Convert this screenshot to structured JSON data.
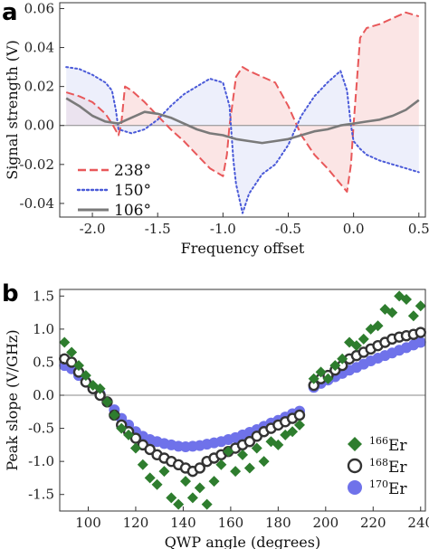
{
  "panels": {
    "a": {
      "letter": "a"
    },
    "b": {
      "letter": "b"
    }
  },
  "chart_data": [
    {
      "type": "line",
      "panel": "a",
      "xlabel": "Frequency offset",
      "ylabel": "Signal strength (V)",
      "xlim": [
        -2.25,
        0.55
      ],
      "ylim": [
        -0.047,
        0.063
      ],
      "xticks": [
        -2.0,
        -1.5,
        -1.0,
        -0.5,
        0.0,
        0.5
      ],
      "xtick_labels": [
        "-2.0",
        "-1.5",
        "-1.0",
        "-0.5",
        "0.0",
        "0.5"
      ],
      "yticks": [
        -0.04,
        -0.02,
        0.0,
        0.02,
        0.04,
        0.06
      ],
      "ytick_labels": [
        "-0.04",
        "-0.02",
        "0.00",
        "0.02",
        "0.04",
        "0.06"
      ],
      "zero_line": true,
      "shaded_to_zero": true,
      "legend_position": "bottom-left",
      "series": [
        {
          "name": "238°",
          "color": "#e8585a",
          "fill": "#f7d0cf",
          "style": "dashed",
          "x": [
            -2.2,
            -2.1,
            -2.0,
            -1.9,
            -1.85,
            -1.8,
            -1.78,
            -1.75,
            -1.7,
            -1.6,
            -1.5,
            -1.4,
            -1.3,
            -1.2,
            -1.1,
            -1.0,
            -0.97,
            -0.95,
            -0.9,
            -0.85,
            -0.8,
            -0.7,
            -0.6,
            -0.5,
            -0.4,
            -0.3,
            -0.2,
            -0.1,
            -0.05,
            -0.02,
            0.0,
            0.05,
            0.1,
            0.2,
            0.3,
            0.4,
            0.5
          ],
          "y": [
            0.017,
            0.015,
            0.012,
            0.006,
            0.001,
            -0.005,
            0.0,
            0.02,
            0.018,
            0.012,
            0.005,
            -0.002,
            -0.008,
            -0.015,
            -0.022,
            -0.026,
            -0.015,
            0.0,
            0.025,
            0.03,
            0.028,
            0.025,
            0.022,
            0.01,
            -0.005,
            -0.015,
            -0.022,
            -0.03,
            -0.034,
            -0.02,
            0.0,
            0.045,
            0.05,
            0.052,
            0.055,
            0.058,
            0.056
          ]
        },
        {
          "name": "150°",
          "color": "#4a5ad8",
          "fill": "#dfe1f7",
          "style": "dotted",
          "x": [
            -2.2,
            -2.1,
            -2.0,
            -1.9,
            -1.85,
            -1.82,
            -1.8,
            -1.7,
            -1.6,
            -1.5,
            -1.4,
            -1.3,
            -1.2,
            -1.1,
            -1.0,
            -0.95,
            -0.92,
            -0.9,
            -0.85,
            -0.8,
            -0.7,
            -0.6,
            -0.5,
            -0.4,
            -0.3,
            -0.2,
            -0.1,
            -0.05,
            -0.02,
            0.0,
            0.05,
            0.1,
            0.2,
            0.3,
            0.4,
            0.5
          ],
          "y": [
            0.03,
            0.029,
            0.026,
            0.022,
            0.018,
            0.008,
            -0.002,
            -0.004,
            -0.002,
            0.003,
            0.01,
            0.016,
            0.02,
            0.024,
            0.022,
            0.01,
            -0.018,
            -0.03,
            -0.045,
            -0.035,
            -0.025,
            -0.02,
            -0.01,
            0.005,
            0.015,
            0.022,
            0.028,
            0.018,
            0.0,
            -0.008,
            -0.012,
            -0.015,
            -0.018,
            -0.02,
            -0.022,
            -0.024
          ]
        },
        {
          "name": "106°",
          "color": "#7a7a7a",
          "style": "solid",
          "x": [
            -2.2,
            -2.1,
            -2.0,
            -1.9,
            -1.8,
            -1.7,
            -1.6,
            -1.5,
            -1.4,
            -1.3,
            -1.2,
            -1.1,
            -1.0,
            -0.9,
            -0.8,
            -0.7,
            -0.6,
            -0.5,
            -0.4,
            -0.3,
            -0.2,
            -0.1,
            0.0,
            0.1,
            0.2,
            0.3,
            0.4,
            0.5
          ],
          "y": [
            0.014,
            0.01,
            0.005,
            0.002,
            0.001,
            0.004,
            0.007,
            0.006,
            0.004,
            0.001,
            -0.002,
            -0.004,
            -0.005,
            -0.007,
            -0.008,
            -0.009,
            -0.008,
            -0.007,
            -0.005,
            -0.003,
            -0.002,
            0.0,
            0.001,
            0.002,
            0.003,
            0.005,
            0.008,
            0.013
          ]
        }
      ]
    },
    {
      "type": "scatter",
      "panel": "b",
      "xlabel": "QWP angle (degrees)",
      "ylabel": "Peak slope (V/GHz)",
      "xlim": [
        88,
        242
      ],
      "ylim": [
        -1.75,
        1.6
      ],
      "xticks": [
        100,
        120,
        140,
        160,
        180,
        200,
        220,
        240
      ],
      "xtick_labels": [
        "100",
        "120",
        "140",
        "160",
        "180",
        "200",
        "220",
        "240"
      ],
      "yticks": [
        -1.5,
        -1.0,
        -0.5,
        0.0,
        0.5,
        1.0,
        1.5
      ],
      "ytick_labels": [
        "-1.5",
        "-1.0",
        "-0.5",
        "0.0",
        "0.5",
        "1.0",
        "1.5"
      ],
      "zero_line": true,
      "legend_position": "bottom-right",
      "series": [
        {
          "name": "Er",
          "mass_number": "166",
          "marker": "diamond",
          "color": "#2e7d2e",
          "x": [
            90,
            93,
            96,
            99,
            102,
            105,
            108,
            111,
            114,
            117,
            120,
            123,
            126,
            129,
            132,
            135,
            138,
            141,
            144,
            147,
            150,
            153,
            156,
            159,
            162,
            165,
            168,
            171,
            174,
            177,
            180,
            183,
            186,
            189,
            195,
            198,
            201,
            204,
            207,
            210,
            213,
            216,
            219,
            222,
            225,
            228,
            231,
            234,
            237,
            240
          ],
          "y": [
            0.8,
            0.65,
            0.45,
            0.3,
            0.15,
            0.1,
            -0.1,
            -0.3,
            -0.5,
            -0.6,
            -0.8,
            -1.05,
            -1.25,
            -1.35,
            -1.15,
            -1.55,
            -1.65,
            -1.3,
            -1.55,
            -1.4,
            -1.65,
            -1.3,
            -1.05,
            -0.85,
            -1.15,
            -0.9,
            -1.1,
            -0.8,
            -1.0,
            -0.7,
            -0.75,
            -0.6,
            -0.55,
            -0.45,
            0.25,
            0.35,
            0.25,
            0.45,
            0.55,
            0.8,
            0.75,
            0.85,
            1.0,
            1.05,
            1.3,
            1.25,
            1.5,
            1.45,
            1.2,
            1.35
          ]
        },
        {
          "name": "Er",
          "mass_number": "168",
          "marker": "open-circle",
          "color": "#333333",
          "x": [
            90,
            93,
            96,
            99,
            102,
            105,
            108,
            111,
            114,
            117,
            120,
            123,
            126,
            129,
            132,
            135,
            138,
            141,
            144,
            147,
            150,
            153,
            156,
            159,
            162,
            165,
            168,
            171,
            174,
            177,
            180,
            183,
            186,
            189,
            195,
            198,
            201,
            204,
            207,
            210,
            213,
            216,
            219,
            222,
            225,
            228,
            231,
            234,
            237,
            240
          ],
          "y": [
            0.55,
            0.5,
            0.35,
            0.2,
            0.1,
            0.0,
            -0.1,
            -0.3,
            -0.45,
            -0.55,
            -0.65,
            -0.75,
            -0.82,
            -0.9,
            -0.95,
            -1.0,
            -1.05,
            -1.1,
            -1.15,
            -1.1,
            -1.0,
            -0.95,
            -0.9,
            -0.85,
            -0.8,
            -0.75,
            -0.7,
            -0.62,
            -0.55,
            -0.5,
            -0.45,
            -0.4,
            -0.35,
            -0.3,
            0.15,
            0.25,
            0.3,
            0.38,
            0.45,
            0.55,
            0.6,
            0.65,
            0.7,
            0.75,
            0.8,
            0.85,
            0.88,
            0.9,
            0.92,
            0.95
          ]
        },
        {
          "name": "Er",
          "mass_number": "170",
          "marker": "filled-circle",
          "color": "#6f72ea",
          "x": [
            90,
            93,
            96,
            99,
            102,
            105,
            108,
            111,
            114,
            117,
            120,
            123,
            126,
            129,
            132,
            135,
            138,
            141,
            144,
            147,
            150,
            153,
            156,
            159,
            162,
            165,
            168,
            171,
            174,
            177,
            180,
            183,
            186,
            189,
            195,
            198,
            201,
            204,
            207,
            210,
            213,
            216,
            219,
            222,
            225,
            228,
            231,
            234,
            237,
            240
          ],
          "y": [
            0.45,
            0.4,
            0.3,
            0.2,
            0.1,
            0.02,
            -0.1,
            -0.22,
            -0.35,
            -0.45,
            -0.55,
            -0.62,
            -0.67,
            -0.7,
            -0.73,
            -0.75,
            -0.77,
            -0.78,
            -0.77,
            -0.76,
            -0.74,
            -0.72,
            -0.7,
            -0.67,
            -0.64,
            -0.6,
            -0.56,
            -0.52,
            -0.47,
            -0.42,
            -0.38,
            -0.33,
            -0.28,
            -0.24,
            0.12,
            0.18,
            0.23,
            0.28,
            0.33,
            0.38,
            0.42,
            0.47,
            0.52,
            0.56,
            0.6,
            0.64,
            0.68,
            0.72,
            0.76,
            0.8
          ]
        }
      ]
    }
  ]
}
